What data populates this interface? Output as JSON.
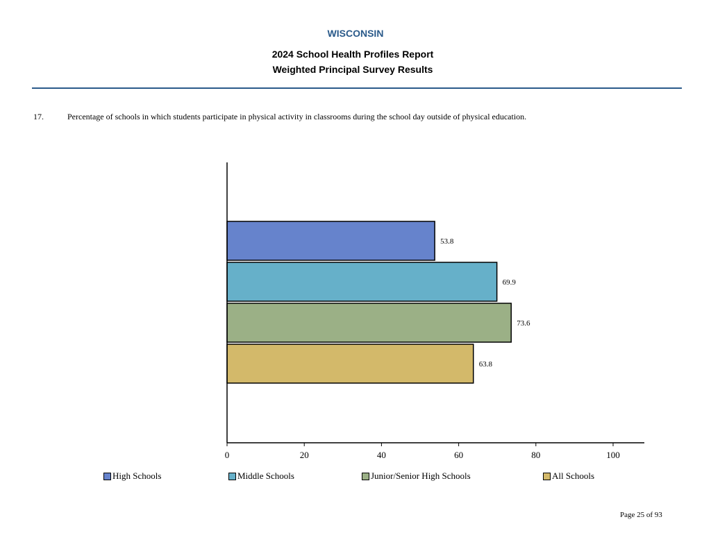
{
  "header": {
    "state": "WISCONSIN",
    "title_line1": "2024 School Health Profiles Report",
    "title_line2": "Weighted Principal Survey Results"
  },
  "question": {
    "number": "17.",
    "text": "Percentage of schools in which students participate in physical activity in classrooms during the school day outside of physical education."
  },
  "chart_data": {
    "type": "bar",
    "orientation": "horizontal",
    "categories": [
      "High Schools",
      "Middle Schools",
      "Junior/Senior High Schools",
      "All Schools"
    ],
    "values": [
      53.8,
      69.9,
      73.6,
      63.8
    ],
    "value_labels": [
      "53.8",
      "69.9",
      "73.6",
      "63.8"
    ],
    "colors": [
      "#6683cc",
      "#66b0c9",
      "#9bb086",
      "#d3b96a"
    ],
    "xlim": [
      0,
      100
    ],
    "x_ticks": [
      "0",
      "20",
      "40",
      "60",
      "80",
      "100"
    ],
    "grid": false,
    "legend_position": "bottom"
  },
  "legend": {
    "items": [
      {
        "label": "High Schools",
        "color": "#6683cc"
      },
      {
        "label": "Middle Schools",
        "color": "#66b0c9"
      },
      {
        "label": "Junior/Senior High Schools",
        "color": "#9bb086"
      },
      {
        "label": "All Schools",
        "color": "#d3b96a"
      }
    ]
  },
  "footer": {
    "page": "Page 25 of 93"
  }
}
